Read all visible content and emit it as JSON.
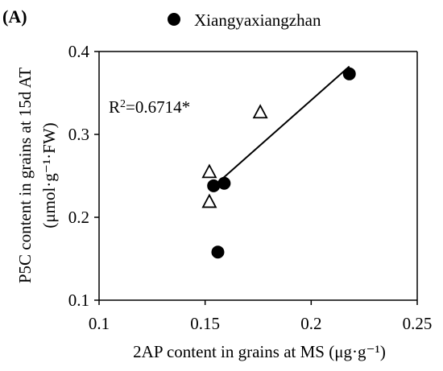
{
  "chart_data": {
    "type": "scatter",
    "panel_label": "(A)",
    "title": "",
    "xlabel": "2AP content in grains at MS (μg·g⁻¹)",
    "ylabel": {
      "line1": "P5C content in grains at 15d AT",
      "line2": "(μmol·g⁻¹·FW)"
    },
    "xlim": [
      0.1,
      0.25
    ],
    "ylim": [
      0.1,
      0.4
    ],
    "x_ticks": [
      0.1,
      0.15,
      0.2,
      0.25
    ],
    "x_tick_labels": [
      "0.1",
      "0.15",
      "0.2",
      "0.25"
    ],
    "y_ticks": [
      0.1,
      0.2,
      0.3,
      0.4
    ],
    "y_tick_labels": [
      "0.1",
      "0.2",
      "0.3",
      "0.4"
    ],
    "grid": false,
    "legend": {
      "placement": "top",
      "entries": [
        {
          "label": "Xiangyaxiangzhan",
          "marker": "filled-circle"
        }
      ]
    },
    "annotation": {
      "prefix": "R",
      "superscript": "2",
      "suffix": "=0.6714*"
    },
    "series": [
      {
        "name": "Xiangyaxiangzhan",
        "marker": "filled-circle",
        "color": "#000000",
        "points": [
          {
            "x": 0.154,
            "y": 0.238
          },
          {
            "x": 0.159,
            "y": 0.241
          },
          {
            "x": 0.156,
            "y": 0.158
          },
          {
            "x": 0.218,
            "y": 0.373
          }
        ]
      },
      {
        "marker": "open-triangle",
        "color": "#000000",
        "points": [
          {
            "x": 0.152,
            "y": 0.254
          },
          {
            "x": 0.152,
            "y": 0.218
          },
          {
            "x": 0.176,
            "y": 0.326
          }
        ]
      }
    ],
    "trendline": {
      "x_start": 0.153,
      "y_start": 0.235,
      "x_end": 0.218,
      "y_end": 0.382
    }
  }
}
